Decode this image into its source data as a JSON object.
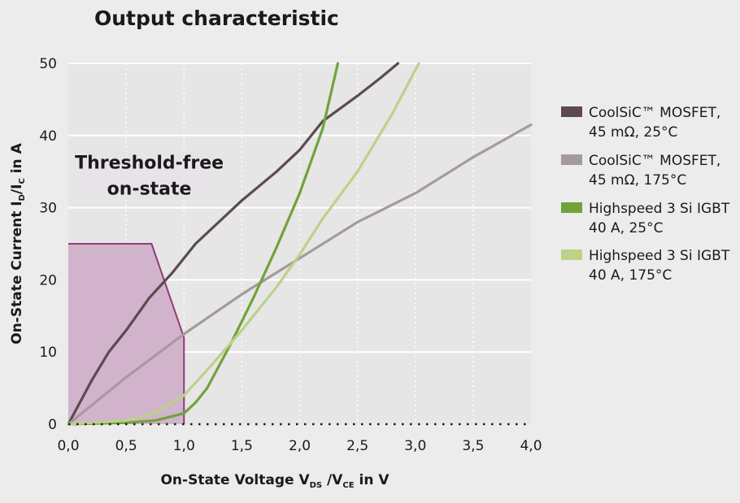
{
  "chart_data": {
    "type": "line",
    "title": "Output characteristic",
    "xlabel": {
      "main": "On-State Voltage V",
      "sub1": "DS",
      "mid": " /V",
      "sub2": "CE",
      "tail": " in V"
    },
    "ylabel": {
      "main": "On-State Current I",
      "sub1": "D",
      "mid": "/I",
      "sub2": "C",
      "tail": " in A"
    },
    "xlim": [
      0,
      4.0
    ],
    "ylim": [
      0,
      50
    ],
    "xticks": [
      0,
      0.5,
      1.0,
      1.5,
      2.0,
      2.5,
      3.0,
      3.5,
      4.0
    ],
    "xtick_labels": [
      "0,0",
      "0,5",
      "1,0",
      "1,5",
      "2,0",
      "2,5",
      "3,0",
      "3,5",
      "4,0"
    ],
    "yticks": [
      0,
      10,
      20,
      30,
      40,
      50
    ],
    "ytick_labels": [
      "0",
      "10",
      "20",
      "30",
      "40",
      "50"
    ],
    "grid": true,
    "legend_position": "right",
    "series": [
      {
        "name_lines": [
          "CoolSiC™ MOSFET,",
          "45 mΩ, 25°C"
        ],
        "color": "#5c4a50",
        "x": [
          0,
          0.1,
          0.2,
          0.35,
          0.5,
          0.7,
          0.9,
          1.1,
          1.3,
          1.5,
          1.8,
          2.0,
          2.2,
          2.5,
          2.7,
          2.85
        ],
        "y": [
          0,
          3,
          6,
          10,
          13,
          17.5,
          21,
          25,
          28,
          31,
          35,
          38,
          42,
          45.5,
          48,
          50
        ]
      },
      {
        "name_lines": [
          "CoolSiC™ MOSFET,",
          "45 mΩ, 175°C"
        ],
        "color": "#a79a9c",
        "x": [
          0,
          0.5,
          1.0,
          1.5,
          2.0,
          2.5,
          3.0,
          3.5,
          4.0
        ],
        "y": [
          0,
          6.5,
          12.5,
          18,
          23,
          28,
          32,
          37,
          41.5
        ]
      },
      {
        "name_lines": [
          "Highspeed 3 Si IGBT",
          "40 A, 25°C"
        ],
        "color": "#72a23b",
        "x": [
          0,
          0.5,
          0.75,
          1.0,
          1.1,
          1.2,
          1.4,
          1.6,
          1.8,
          2.0,
          2.2,
          2.33
        ],
        "y": [
          0,
          0.2,
          0.5,
          1.5,
          3,
          5,
          11,
          17.5,
          24.5,
          32,
          41,
          50
        ]
      },
      {
        "name_lines": [
          "Highspeed 3 Si IGBT",
          "40 A, 175°C"
        ],
        "color": "#bdd188",
        "x": [
          0,
          0.5,
          0.75,
          1.0,
          1.2,
          1.5,
          1.8,
          2.0,
          2.2,
          2.5,
          2.8,
          3.03
        ],
        "y": [
          0,
          0.5,
          1.5,
          4,
          7.5,
          13,
          19,
          23.5,
          28.5,
          35,
          43,
          50
        ]
      }
    ],
    "region": {
      "label_lines": [
        "Threshold-free",
        "on-state"
      ],
      "fill": "#d0b0c9",
      "stroke": "#8e3d7a",
      "points": [
        [
          0,
          25
        ],
        [
          0.72,
          25
        ],
        [
          1.0,
          12
        ],
        [
          1.0,
          0
        ],
        [
          0,
          0
        ]
      ]
    }
  }
}
